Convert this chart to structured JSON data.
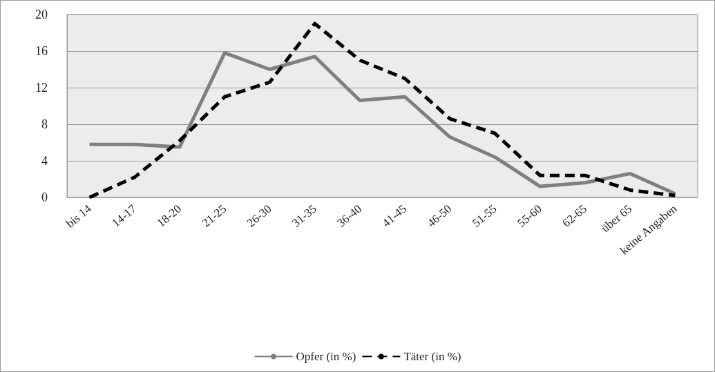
{
  "chart_data": {
    "type": "line",
    "categories": [
      "bis 14",
      "14-17",
      "18-20",
      "21-25",
      "26-30",
      "31-35",
      "36-40",
      "41-45",
      "46-50",
      "51-55",
      "55-60",
      "62-65",
      "über 65",
      "keine Angaben"
    ],
    "series": [
      {
        "name": "Opfer (in %)",
        "color": "#7f7f7f",
        "line_style": "solid",
        "values": [
          5.8,
          5.8,
          5.5,
          15.8,
          14,
          15.4,
          10.6,
          11,
          6.6,
          4.4,
          1.2,
          1.6,
          2.6,
          0.4
        ]
      },
      {
        "name": "Täter (in %)",
        "color": "#000000",
        "line_style": "dashed",
        "values": [
          0,
          2.2,
          6.2,
          11,
          12.6,
          19,
          15,
          13,
          8.6,
          7,
          2.4,
          2.4,
          0.8,
          0.2
        ]
      }
    ],
    "ylim": [
      0,
      20
    ],
    "yticks": [
      0,
      4,
      8,
      12,
      16,
      20
    ],
    "grid": "y",
    "legend": "bottom",
    "marker": "none"
  }
}
